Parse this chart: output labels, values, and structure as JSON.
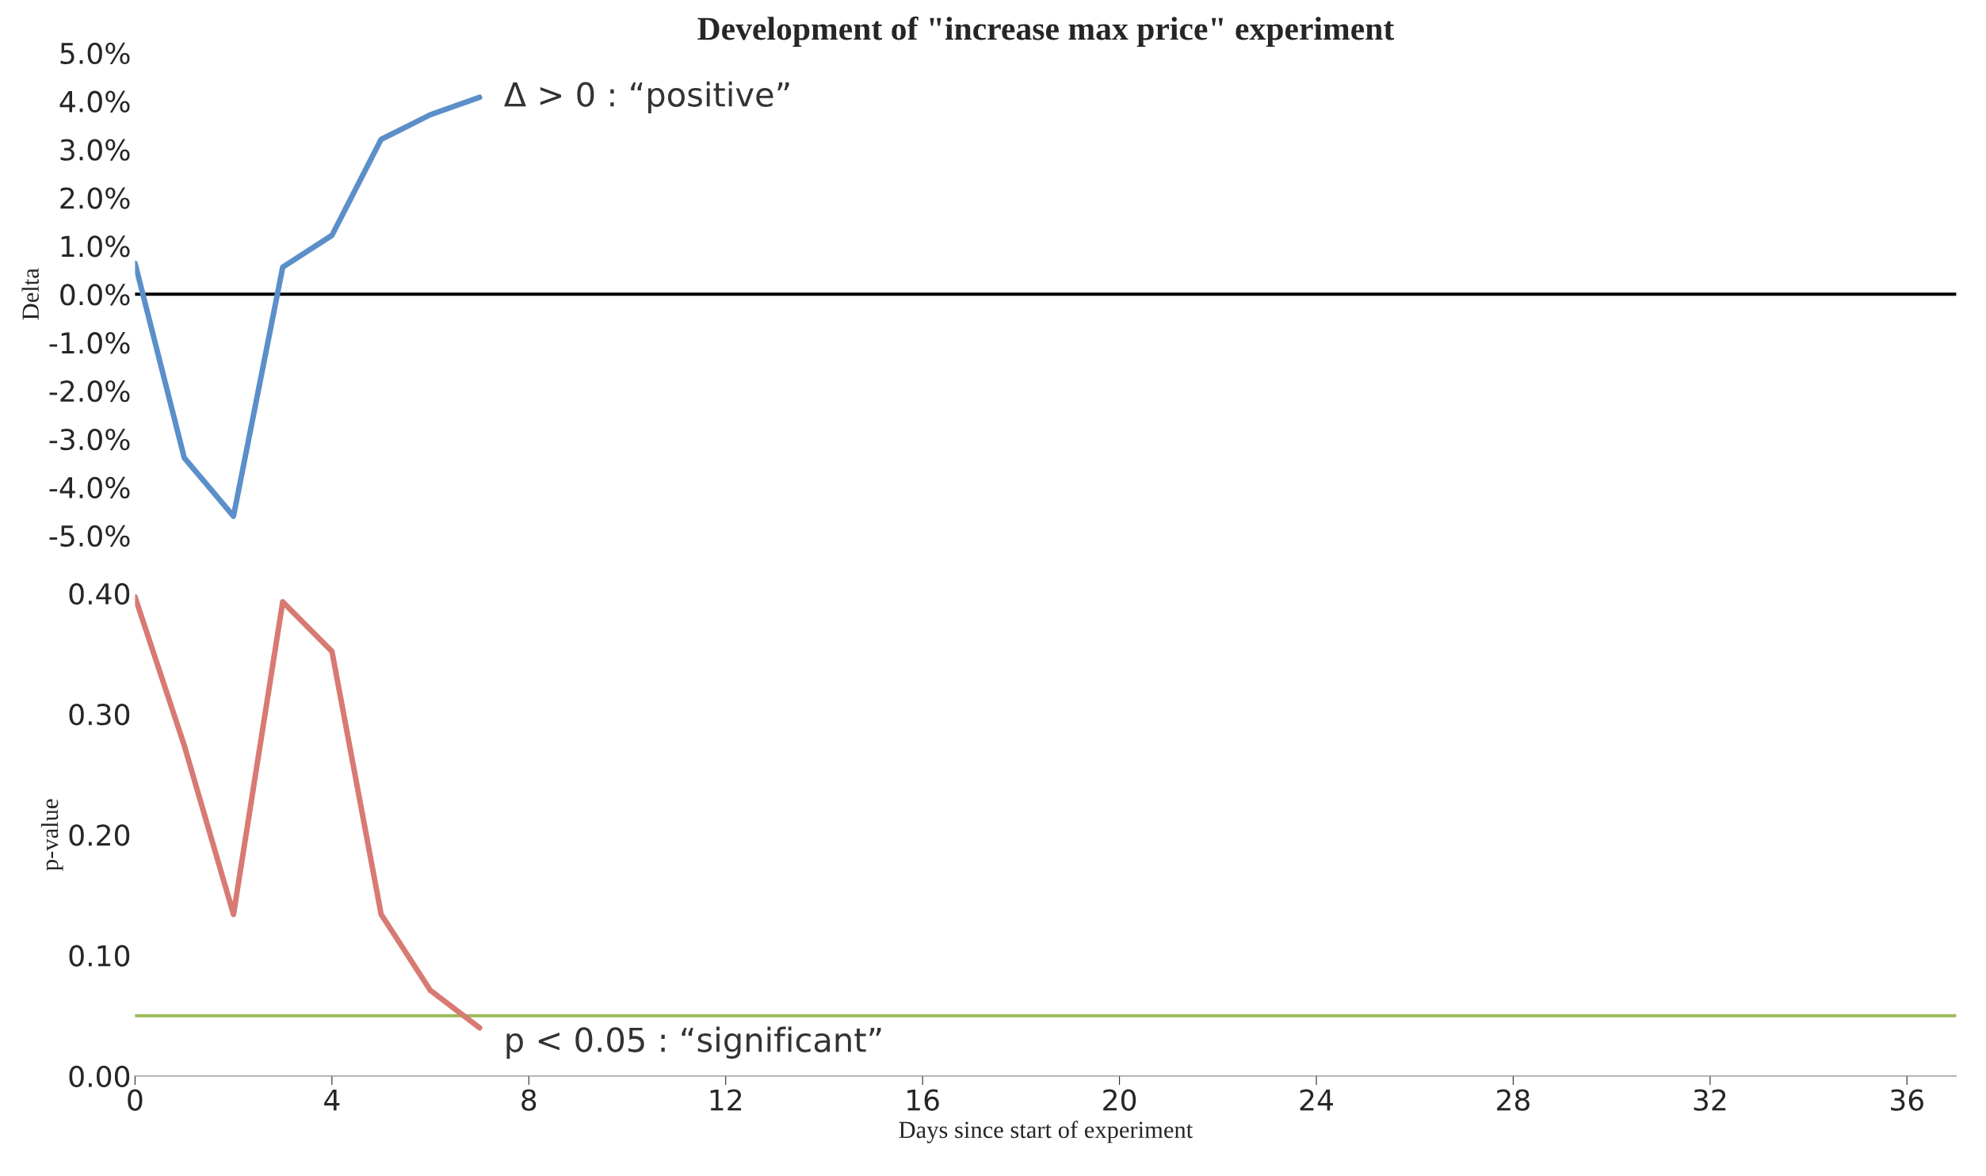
{
  "chart_data": [
    {
      "type": "line",
      "title": "Development of \"increase max price\" experiment",
      "ylabel": "Delta",
      "x": [
        0,
        1,
        2,
        3,
        4,
        5,
        6,
        7
      ],
      "series": [
        {
          "color": "#5b8fc9",
          "values": [
            0.64,
            -3.39,
            -4.6,
            0.56,
            1.22,
            3.21,
            3.72,
            4.08
          ]
        }
      ],
      "xlim": [
        0,
        37
      ],
      "ylim": [
        -5,
        5
      ],
      "yticks": [
        {
          "value": -5,
          "label": "-5.0%"
        },
        {
          "value": -4,
          "label": "-4.0%"
        },
        {
          "value": -3,
          "label": "-3.0%"
        },
        {
          "value": -2,
          "label": "-2.0%"
        },
        {
          "value": -1,
          "label": "-1.0%"
        },
        {
          "value": 0,
          "label": "0.0%"
        },
        {
          "value": 1,
          "label": "1.0%"
        },
        {
          "value": 2,
          "label": "2.0%"
        },
        {
          "value": 3,
          "label": "3.0%"
        },
        {
          "value": 4,
          "label": "4.0%"
        },
        {
          "value": 5,
          "label": "5.0%"
        }
      ],
      "ref_lines": [
        {
          "axis": "y",
          "value": 0,
          "color": "#000000"
        }
      ],
      "annotations": [
        {
          "text": "Δ > 0 : “positive”",
          "x": 7,
          "y": 4.08
        }
      ],
      "tick_labels": "y",
      "grid": false,
      "legend": false
    },
    {
      "type": "line",
      "xlabel": "Days since start of experiment",
      "ylabel": "p-value",
      "x": [
        0,
        1,
        2,
        3,
        4,
        5,
        6,
        7
      ],
      "series": [
        {
          "color": "#d87a74",
          "values": [
            0.397,
            0.274,
            0.134,
            0.393,
            0.352,
            0.134,
            0.071,
            0.04
          ]
        }
      ],
      "xlim": [
        0,
        37
      ],
      "xticks": [
        0,
        4,
        8,
        12,
        16,
        20,
        24,
        28,
        32,
        36
      ],
      "ylim": [
        0,
        0.4
      ],
      "yticks": [
        {
          "value": 0,
          "label": "0.00"
        },
        {
          "value": 0.1,
          "label": "0.10"
        },
        {
          "value": 0.2,
          "label": "0.20"
        },
        {
          "value": 0.3,
          "label": "0.30"
        },
        {
          "value": 0.4,
          "label": "0.40"
        }
      ],
      "ref_lines": [
        {
          "axis": "y",
          "value": 0.05,
          "color": "#9bbb59"
        }
      ],
      "annotations": [
        {
          "text": "p < 0.05 : “significant”",
          "x": 7,
          "y": 0.05
        }
      ],
      "grid": false,
      "legend": false
    }
  ]
}
